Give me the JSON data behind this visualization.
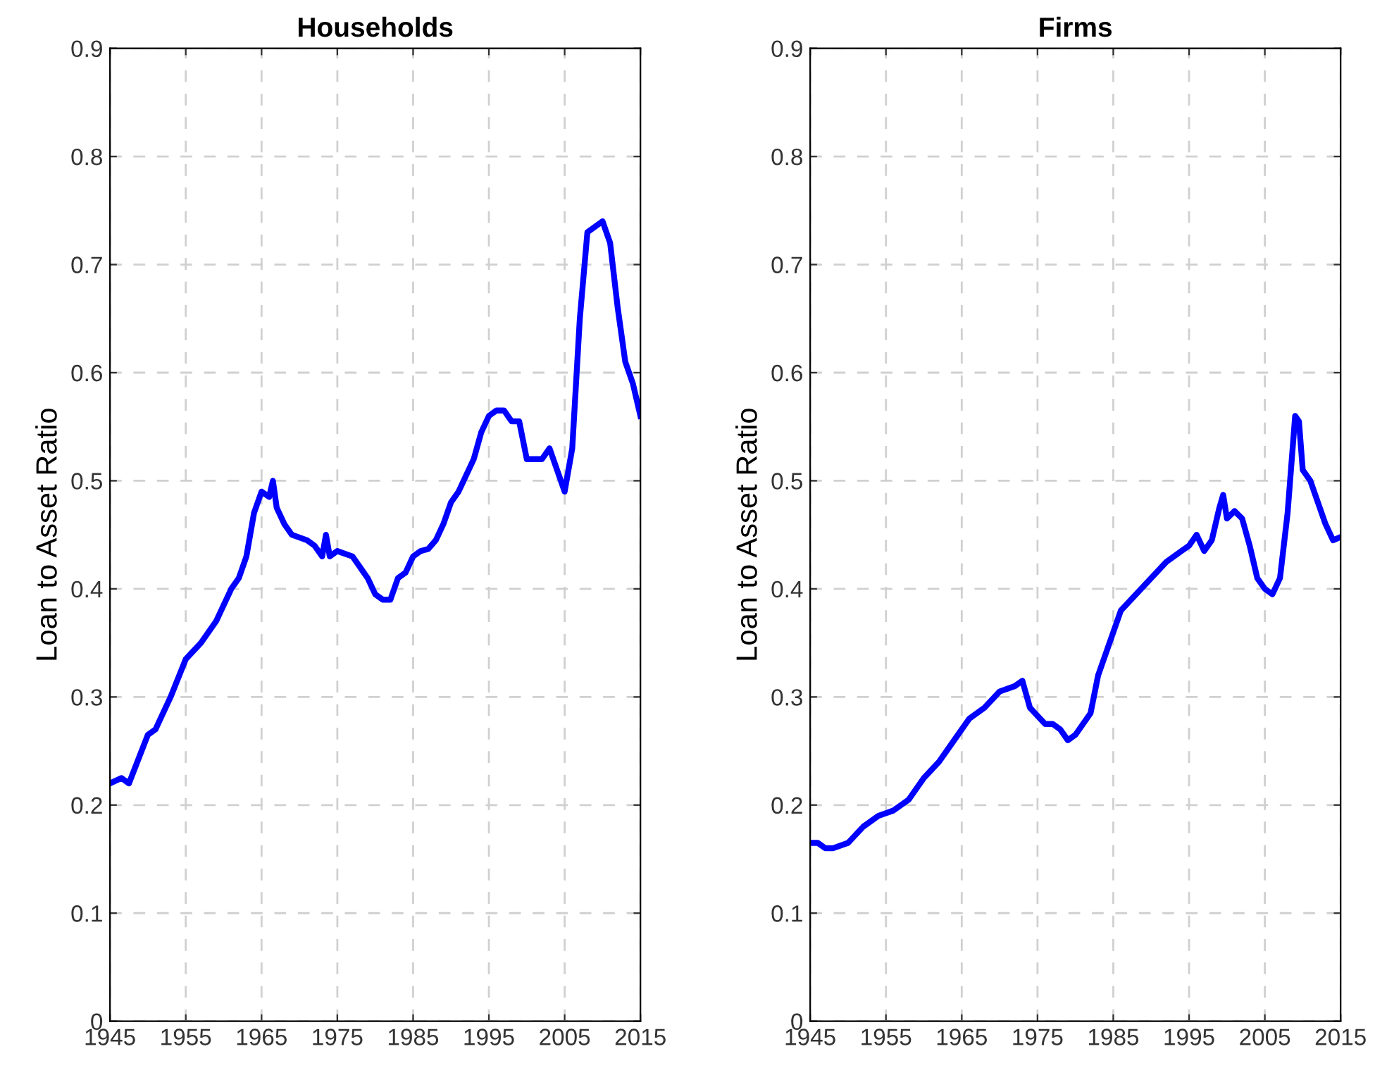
{
  "chart_data": [
    {
      "type": "line",
      "title": "Households",
      "ylabel": "Loan to Asset Ratio",
      "xlim": [
        1945,
        2015
      ],
      "xticks": [
        1945,
        1955,
        1965,
        1975,
        1985,
        1995,
        2005,
        2015
      ],
      "ylim": [
        0,
        0.9
      ],
      "yticks": [
        0,
        0.1,
        0.2,
        0.3,
        0.4,
        0.5,
        0.6,
        0.7,
        0.8,
        0.9
      ],
      "grid": true,
      "series": [
        {
          "color": "#0000ff",
          "x": [
            1945,
            1946.5,
            1947.5,
            1950,
            1951,
            1953,
            1955,
            1957,
            1959,
            1960,
            1961,
            1962,
            1963,
            1964,
            1965,
            1966,
            1966.5,
            1967,
            1968,
            1969,
            1971,
            1972,
            1973,
            1973.5,
            1974,
            1975,
            1977,
            1978,
            1979,
            1980,
            1981,
            1982,
            1983,
            1984,
            1985,
            1986,
            1987,
            1988,
            1989,
            1990,
            1991,
            1992,
            1993,
            1994,
            1995,
            1996,
            1997,
            1998,
            1999,
            2000,
            2001,
            2002,
            2003,
            2004,
            2005,
            2006,
            2007,
            2008,
            2009,
            2010,
            2011,
            2012,
            2013,
            2014,
            2015
          ],
          "values": [
            0.22,
            0.225,
            0.22,
            0.265,
            0.27,
            0.3,
            0.335,
            0.35,
            0.37,
            0.385,
            0.4,
            0.41,
            0.43,
            0.47,
            0.49,
            0.485,
            0.5,
            0.475,
            0.46,
            0.45,
            0.445,
            0.44,
            0.43,
            0.45,
            0.43,
            0.435,
            0.43,
            0.42,
            0.41,
            0.395,
            0.39,
            0.39,
            0.41,
            0.415,
            0.43,
            0.435,
            0.437,
            0.445,
            0.46,
            0.48,
            0.49,
            0.505,
            0.52,
            0.545,
            0.56,
            0.565,
            0.565,
            0.555,
            0.555,
            0.52,
            0.52,
            0.52,
            0.53,
            0.51,
            0.49,
            0.53,
            0.65,
            0.73,
            0.735,
            0.74,
            0.72,
            0.66,
            0.61,
            0.59,
            0.56
          ]
        }
      ]
    },
    {
      "type": "line",
      "title": "Firms",
      "ylabel": "Loan to Asset Ratio",
      "xlim": [
        1945,
        2015
      ],
      "xticks": [
        1945,
        1955,
        1965,
        1975,
        1985,
        1995,
        2005,
        2015
      ],
      "ylim": [
        0,
        0.9
      ],
      "yticks": [
        0,
        0.1,
        0.2,
        0.3,
        0.4,
        0.5,
        0.6,
        0.7,
        0.8,
        0.9
      ],
      "grid": true,
      "series": [
        {
          "color": "#0000ff",
          "x": [
            1945,
            1946,
            1947,
            1948,
            1950,
            1952,
            1954,
            1956,
            1958,
            1960,
            1962,
            1964,
            1966,
            1968,
            1970,
            1972,
            1973,
            1974,
            1976,
            1977,
            1978,
            1979,
            1980,
            1982,
            1983,
            1985,
            1986,
            1988,
            1990,
            1992,
            1994,
            1995,
            1996,
            1997,
            1998,
            1999,
            1999.5,
            2000,
            2001,
            2002,
            2003,
            2004,
            2005,
            2006,
            2007,
            2008,
            2009,
            2009.5,
            2010,
            2011,
            2012,
            2013,
            2014,
            2015
          ],
          "values": [
            0.165,
            0.165,
            0.16,
            0.16,
            0.165,
            0.18,
            0.19,
            0.195,
            0.205,
            0.225,
            0.24,
            0.26,
            0.28,
            0.29,
            0.305,
            0.31,
            0.315,
            0.29,
            0.275,
            0.275,
            0.27,
            0.26,
            0.265,
            0.285,
            0.32,
            0.36,
            0.38,
            0.395,
            0.41,
            0.425,
            0.435,
            0.44,
            0.45,
            0.435,
            0.445,
            0.475,
            0.487,
            0.465,
            0.472,
            0.465,
            0.44,
            0.41,
            0.4,
            0.395,
            0.41,
            0.47,
            0.56,
            0.555,
            0.51,
            0.5,
            0.48,
            0.46,
            0.445,
            0.448
          ]
        }
      ]
    }
  ]
}
